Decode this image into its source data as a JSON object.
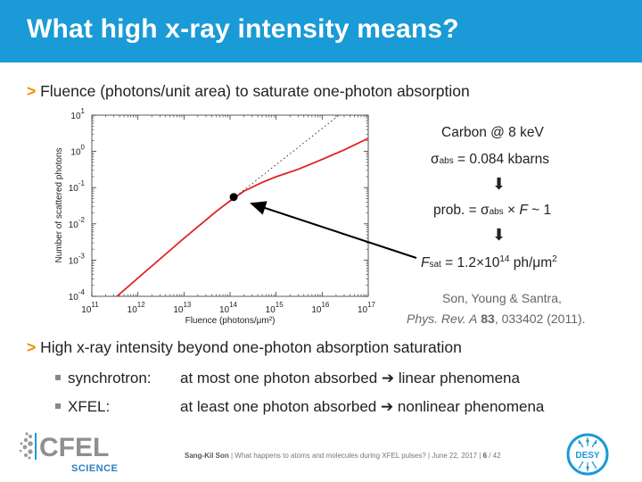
{
  "slide": {
    "title": "What high x-ray intensity means?",
    "bullet_arrow": ">",
    "bullet1": "Fluence (photons/unit area) to saturate one-photon absorption",
    "bullet2": "High x-ray intensity beyond one-photon absorption saturation",
    "sub1_label": "synchrotron:",
    "sub1_text": "at most one photon absorbed ➔ linear phenomena",
    "sub2_label": "XFEL:",
    "sub2_text": "at least one photon absorbed ➔ nonlinear phenomena"
  },
  "right_panel": {
    "line1": "Carbon @ 8 keV",
    "sigma_symbol": "σ",
    "sigma_sub": "abs",
    "line2_rest": " = 0.084 kbarns",
    "arrow_glyph": "⬇",
    "line3_prefix": "prob. = σ",
    "line3_sub": "abs",
    "line3_mid": " × ",
    "line3_F": "F",
    "line3_rest": " ~ 1",
    "line4_F": "F",
    "line4_sub": "sat",
    "line4_a": " = 1.2×10",
    "line4_sup": "14",
    "line4_b": " ph/μm",
    "line4_sup2": "2"
  },
  "citation": {
    "authors": "Son, Young & Santra,",
    "journal": "Phys. Rev. A",
    "volume": "83",
    "rest": ", 033402 (2011)."
  },
  "footer": {
    "author": "Sang-Kil Son",
    "text": " |  What happens to atoms and molecules during XFEL pulses?  |  June 22, 2017  |  ",
    "page": "6",
    "total": " / 42"
  },
  "logos": {
    "cfel_main": "CFEL",
    "cfel_sub": "SCIENCE",
    "desy": "DESY"
  },
  "colors": {
    "title_bar": "#1a9ad6",
    "accent": "#f08a00",
    "curve": "#e02020"
  },
  "chart_data": {
    "type": "line",
    "title": "",
    "xlabel": "Fluence (photons/μm²)",
    "ylabel": "Number of scattered photons",
    "xscale": "log",
    "yscale": "log",
    "xlim": [
      100000000000.0,
      1e+17
    ],
    "ylim": [
      0.0001,
      10.0
    ],
    "x_ticks": [
      {
        "base": "10",
        "exp": "11"
      },
      {
        "base": "10",
        "exp": "12"
      },
      {
        "base": "10",
        "exp": "13"
      },
      {
        "base": "10",
        "exp": "14"
      },
      {
        "base": "10",
        "exp": "15"
      },
      {
        "base": "10",
        "exp": "16"
      },
      {
        "base": "10",
        "exp": "17"
      }
    ],
    "y_ticks": [
      {
        "base": "10",
        "exp": "-4"
      },
      {
        "base": "10",
        "exp": "-3"
      },
      {
        "base": "10",
        "exp": "-2"
      },
      {
        "base": "10",
        "exp": "-1"
      },
      {
        "base": "10",
        "exp": "0"
      },
      {
        "base": "10",
        "exp": "1"
      }
    ],
    "series": [
      {
        "style": "solid",
        "color": "#e02020",
        "x": [
          350000000000.0,
          1000000000000.0,
          10000000000000.0,
          50000000000000.0,
          100000000000000.0,
          200000000000000.0,
          500000000000000.0,
          1000000000000000.0,
          3000000000000000.0,
          1e+16,
          3e+16,
          1e+17
        ],
        "y": [
          0.0001,
          0.00032,
          0.004,
          0.022,
          0.043,
          0.08,
          0.14,
          0.2,
          0.32,
          0.6,
          1.1,
          2.3
        ]
      },
      {
        "style": "dotted",
        "color": "#333333",
        "x": [
          100000000000000.0,
          1e+17
        ],
        "y": [
          0.043,
          43
        ]
      }
    ],
    "marker": {
      "x": 120000000000000.0,
      "y": 0.055
    }
  }
}
